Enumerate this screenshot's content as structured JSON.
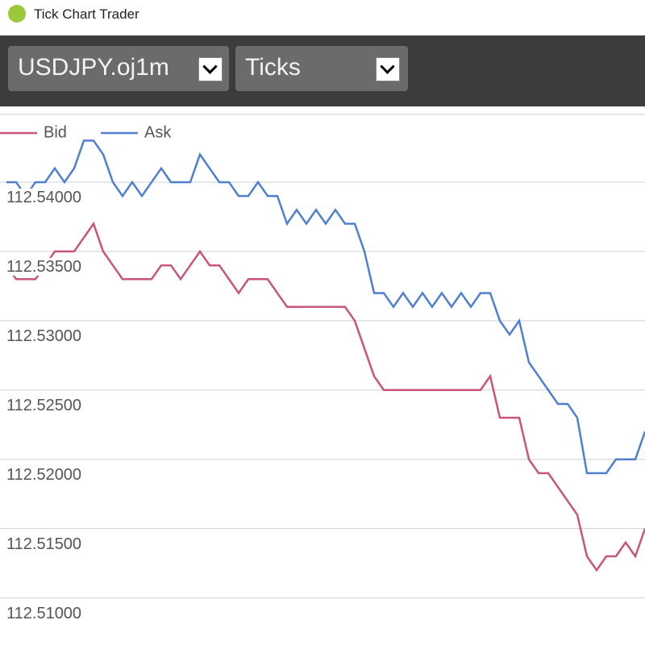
{
  "window": {
    "title": "Tick Chart Trader"
  },
  "toolbar": {
    "symbol": "USDJPY.oj1m",
    "mode": "Ticks"
  },
  "chart_data": {
    "type": "line",
    "series": [
      {
        "name": "Bid",
        "color": "#c9557a",
        "values": [
          112.534,
          112.533,
          112.533,
          112.533,
          112.534,
          112.535,
          112.535,
          112.535,
          112.536,
          112.537,
          112.535,
          112.534,
          112.533,
          112.533,
          112.533,
          112.533,
          112.534,
          112.534,
          112.533,
          112.534,
          112.535,
          112.534,
          112.534,
          112.533,
          112.532,
          112.533,
          112.533,
          112.533,
          112.532,
          112.531,
          112.531,
          112.531,
          112.531,
          112.531,
          112.531,
          112.531,
          112.53,
          112.528,
          112.526,
          112.525,
          112.525,
          112.525,
          112.525,
          112.525,
          112.525,
          112.525,
          112.525,
          112.525,
          112.525,
          112.525,
          112.526,
          112.523,
          112.523,
          112.523,
          112.52,
          112.519,
          112.519,
          112.518,
          112.517,
          112.516,
          112.513,
          112.512,
          112.513,
          112.513,
          112.514,
          112.513,
          112.515
        ]
      },
      {
        "name": "Ask",
        "color": "#4f7fd0",
        "values": [
          112.54,
          112.54,
          112.539,
          112.54,
          112.54,
          112.541,
          112.54,
          112.541,
          112.543,
          112.543,
          112.542,
          112.54,
          112.539,
          112.54,
          112.539,
          112.54,
          112.541,
          112.54,
          112.54,
          112.54,
          112.542,
          112.541,
          112.54,
          112.54,
          112.539,
          112.539,
          112.54,
          112.539,
          112.539,
          112.537,
          112.538,
          112.537,
          112.538,
          112.537,
          112.538,
          112.537,
          112.537,
          112.535,
          112.532,
          112.532,
          112.531,
          112.532,
          112.531,
          112.532,
          112.531,
          112.532,
          112.531,
          112.532,
          112.531,
          112.532,
          112.532,
          112.53,
          112.529,
          112.53,
          112.527,
          112.526,
          112.525,
          112.524,
          112.524,
          112.523,
          112.519,
          112.519,
          112.519,
          112.52,
          112.52,
          112.52,
          112.522
        ]
      }
    ],
    "ylim": [
      112.5066,
      112.545
    ],
    "yticks": [
      {
        "value": 112.54,
        "label": "112.54000"
      },
      {
        "value": 112.535,
        "label": "112.53500"
      },
      {
        "value": 112.53,
        "label": "112.53000"
      },
      {
        "value": 112.525,
        "label": "112.52500"
      },
      {
        "value": 112.52,
        "label": "112.52000"
      },
      {
        "value": 112.515,
        "label": "112.51500"
      },
      {
        "value": 112.51,
        "label": "112.51000"
      }
    ],
    "grid": true
  }
}
